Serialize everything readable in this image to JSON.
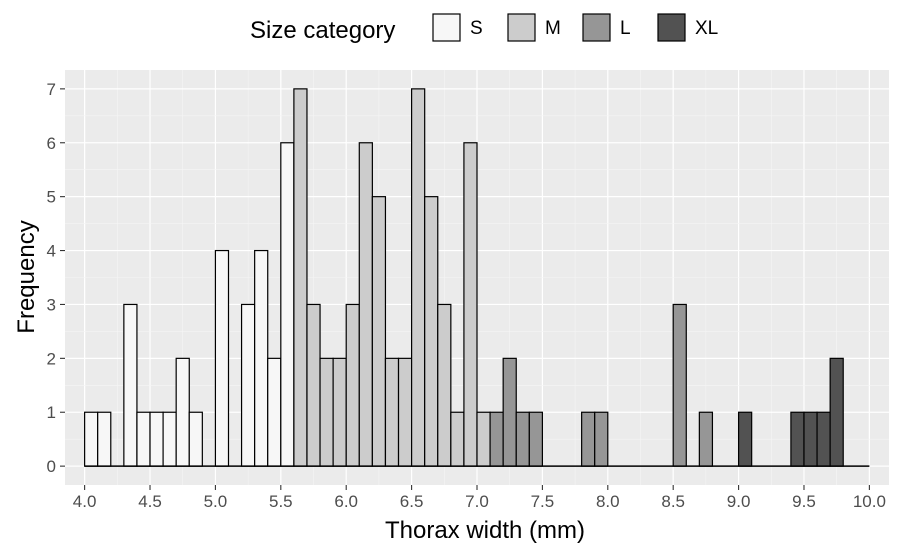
{
  "chart_data": {
    "type": "bar",
    "xlabel": "Thorax width (mm)",
    "ylabel": "Frequency",
    "xlim": [
      3.85,
      10.15
    ],
    "ylim": [
      -0.35,
      7.35
    ],
    "xticks": [
      "4.0",
      "4.5",
      "5.0",
      "5.5",
      "6.0",
      "6.5",
      "7.0",
      "7.5",
      "8.0",
      "8.5",
      "9.0",
      "9.5",
      "10.0"
    ],
    "yticks": [
      "0",
      "1",
      "2",
      "3",
      "4",
      "5",
      "6",
      "7"
    ],
    "bin_start": 4.0,
    "bin_width": 0.1,
    "grid": true,
    "legend": {
      "title": "Size category",
      "position": "top",
      "entries": [
        {
          "label": "S",
          "color": "#f7f7f7"
        },
        {
          "label": "M",
          "color": "#cccccc"
        },
        {
          "label": "L",
          "color": "#969696"
        },
        {
          "label": "XL",
          "color": "#525252"
        }
      ]
    },
    "series": [
      {
        "name": "S",
        "color": "#f7f7f7",
        "values": [
          1,
          1,
          0,
          3,
          1,
          1,
          1,
          2,
          1,
          0,
          4,
          0,
          3,
          4,
          2,
          6,
          0,
          0,
          0,
          0,
          0,
          0,
          0,
          0,
          0,
          0,
          0,
          0,
          0,
          0,
          0,
          0,
          0,
          0,
          0,
          0,
          0,
          0,
          0,
          0,
          0,
          0,
          0,
          0,
          0,
          0,
          0,
          0,
          0,
          0,
          0,
          0,
          0,
          0,
          0,
          0,
          0,
          0,
          0,
          0
        ]
      },
      {
        "name": "M",
        "color": "#cccccc",
        "values": [
          0,
          0,
          0,
          0,
          0,
          0,
          0,
          0,
          0,
          0,
          0,
          0,
          0,
          0,
          0,
          0,
          7,
          3,
          2,
          2,
          3,
          6,
          5,
          2,
          2,
          7,
          5,
          3,
          1,
          6,
          1,
          0,
          0,
          0,
          0,
          0,
          0,
          0,
          0,
          0,
          0,
          0,
          0,
          0,
          0,
          0,
          0,
          0,
          0,
          0,
          0,
          0,
          0,
          0,
          0,
          0,
          0,
          0,
          0,
          0
        ]
      },
      {
        "name": "L",
        "color": "#969696",
        "values": [
          0,
          0,
          0,
          0,
          0,
          0,
          0,
          0,
          0,
          0,
          0,
          0,
          0,
          0,
          0,
          0,
          0,
          0,
          0,
          0,
          0,
          0,
          0,
          0,
          0,
          0,
          0,
          0,
          0,
          0,
          0,
          1,
          2,
          1,
          1,
          0,
          0,
          0,
          1,
          1,
          0,
          0,
          0,
          0,
          0,
          3,
          0,
          1,
          0,
          0,
          0,
          0,
          0,
          0,
          0,
          0,
          0,
          0,
          0,
          0
        ]
      },
      {
        "name": "XL",
        "color": "#525252",
        "values": [
          0,
          0,
          0,
          0,
          0,
          0,
          0,
          0,
          0,
          0,
          0,
          0,
          0,
          0,
          0,
          0,
          0,
          0,
          0,
          0,
          0,
          0,
          0,
          0,
          0,
          0,
          0,
          0,
          0,
          0,
          0,
          0,
          0,
          0,
          0,
          0,
          0,
          0,
          0,
          0,
          0,
          0,
          0,
          0,
          0,
          0,
          0,
          0,
          0,
          0,
          1,
          0,
          0,
          0,
          1,
          1,
          1,
          2,
          0,
          0
        ]
      }
    ]
  }
}
